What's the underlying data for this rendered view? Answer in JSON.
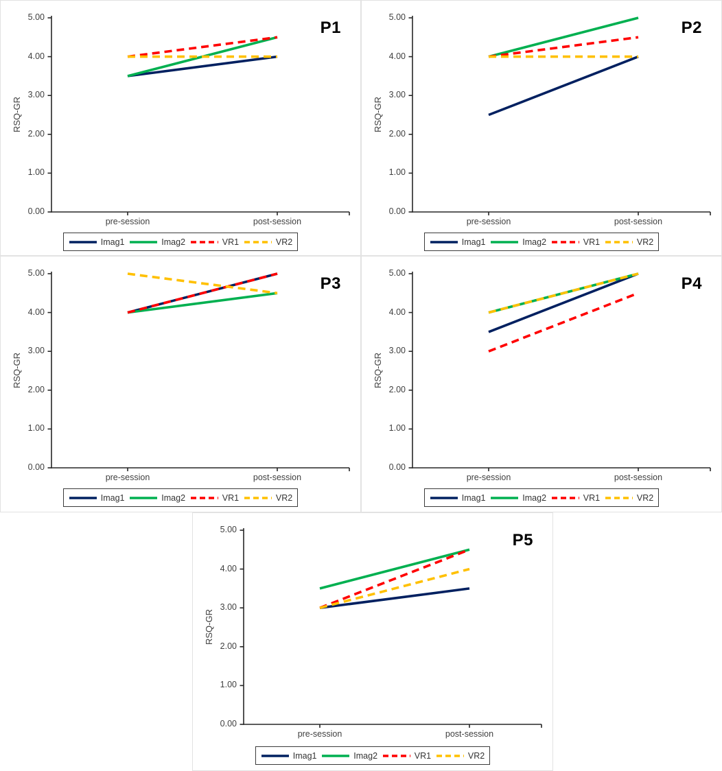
{
  "figure": {
    "ylabel": "RSQ-GR",
    "categories": [
      "pre-session",
      "post-session"
    ],
    "yticks": [
      5,
      4,
      3,
      2,
      1,
      0
    ],
    "ytick_labels": [
      "5.00",
      "4.00",
      "3.00",
      "2.00",
      "1.00",
      "0.00"
    ],
    "ylim": [
      0,
      5
    ],
    "axis_color": "#262626",
    "text_color": "#404040",
    "panel_border_color": "#e2e2e2",
    "legend": [
      {
        "name": "Imag1",
        "color": "#002060",
        "dash": "solid"
      },
      {
        "name": "Imag2",
        "color": "#00B050",
        "dash": "solid"
      },
      {
        "name": "VR1",
        "color": "#FF0000",
        "dash": "dashed"
      },
      {
        "name": "VR2",
        "color": "#FFC000",
        "dash": "dashed"
      }
    ]
  },
  "chart_data": [
    {
      "type": "line",
      "title": "P1",
      "xlabel": "",
      "ylabel": "RSQ-GR",
      "ylim": [
        0,
        5
      ],
      "categories": [
        "pre-session",
        "post-session"
      ],
      "legend_position": "bottom",
      "grid": false,
      "series": [
        {
          "name": "Imag1",
          "values": [
            3.5,
            4.0
          ]
        },
        {
          "name": "Imag2",
          "values": [
            3.5,
            4.5
          ]
        },
        {
          "name": "VR1",
          "values": [
            4.0,
            4.5
          ]
        },
        {
          "name": "VR2",
          "values": [
            4.0,
            4.0
          ]
        }
      ]
    },
    {
      "type": "line",
      "title": "P2",
      "xlabel": "",
      "ylabel": "RSQ-GR",
      "ylim": [
        0,
        5
      ],
      "categories": [
        "pre-session",
        "post-session"
      ],
      "legend_position": "bottom",
      "grid": false,
      "series": [
        {
          "name": "Imag1",
          "values": [
            2.5,
            4.0
          ]
        },
        {
          "name": "Imag2",
          "values": [
            4.0,
            5.0
          ]
        },
        {
          "name": "VR1",
          "values": [
            4.0,
            4.5
          ]
        },
        {
          "name": "VR2",
          "values": [
            4.0,
            4.0
          ]
        }
      ]
    },
    {
      "type": "line",
      "title": "P3",
      "xlabel": "",
      "ylabel": "RSQ-GR",
      "ylim": [
        0,
        5
      ],
      "categories": [
        "pre-session",
        "post-session"
      ],
      "legend_position": "bottom",
      "grid": false,
      "series": [
        {
          "name": "Imag1",
          "values": [
            4.0,
            5.0
          ]
        },
        {
          "name": "Imag2",
          "values": [
            4.0,
            4.5
          ]
        },
        {
          "name": "VR1",
          "values": [
            4.0,
            5.0
          ]
        },
        {
          "name": "VR2",
          "values": [
            5.0,
            4.5
          ]
        }
      ]
    },
    {
      "type": "line",
      "title": "P4",
      "xlabel": "",
      "ylabel": "RSQ-GR",
      "ylim": [
        0,
        5
      ],
      "categories": [
        "pre-session",
        "post-session"
      ],
      "legend_position": "bottom",
      "grid": false,
      "series": [
        {
          "name": "Imag1",
          "values": [
            3.5,
            5.0
          ]
        },
        {
          "name": "Imag2",
          "values": [
            4.0,
            5.0
          ]
        },
        {
          "name": "VR1",
          "values": [
            3.0,
            4.5
          ]
        },
        {
          "name": "VR2",
          "values": [
            4.0,
            5.0
          ]
        }
      ]
    },
    {
      "type": "line",
      "title": "P5",
      "xlabel": "",
      "ylabel": "RSQ-GR",
      "ylim": [
        0,
        5
      ],
      "categories": [
        "pre-session",
        "post-session"
      ],
      "legend_position": "bottom",
      "grid": false,
      "series": [
        {
          "name": "Imag1",
          "values": [
            3.0,
            3.5
          ]
        },
        {
          "name": "Imag2",
          "values": [
            3.5,
            4.5
          ]
        },
        {
          "name": "VR1",
          "values": [
            3.0,
            4.5
          ]
        },
        {
          "name": "VR2",
          "values": [
            3.0,
            4.0
          ]
        }
      ]
    }
  ]
}
